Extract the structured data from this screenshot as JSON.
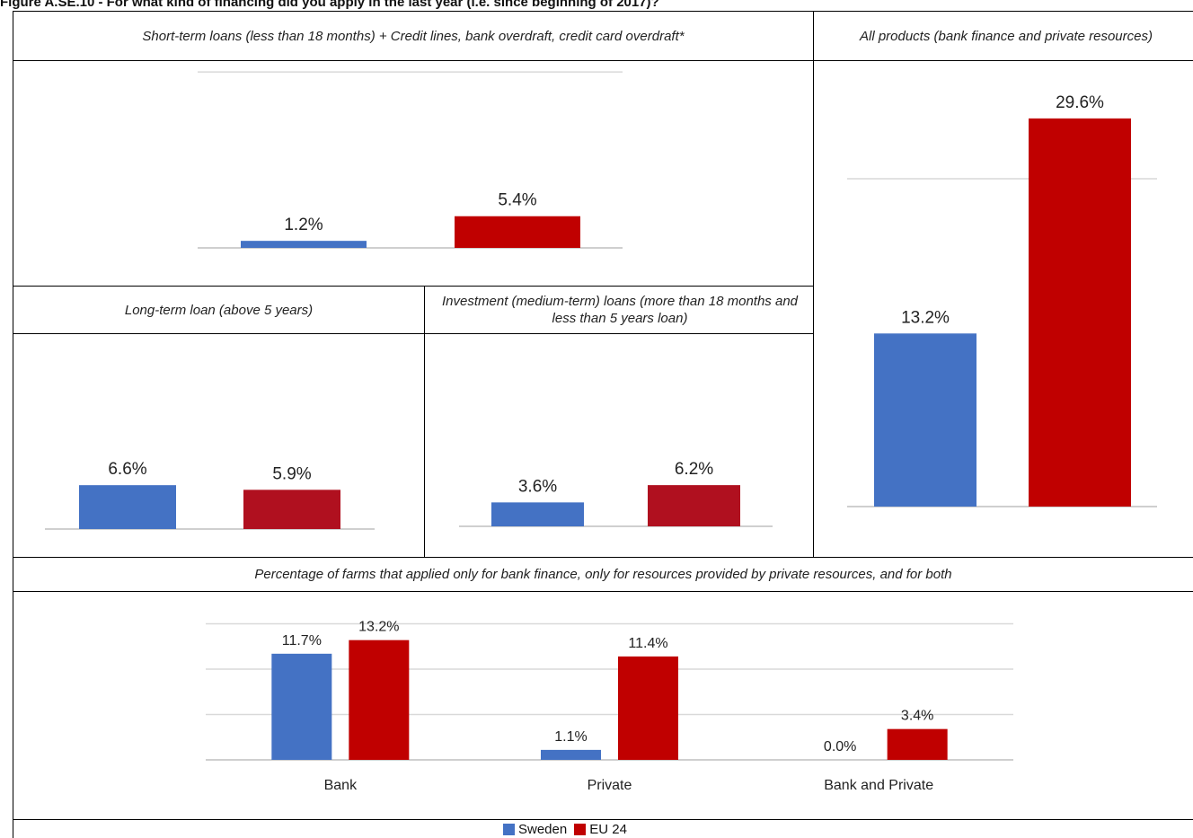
{
  "figure_title": "Figure A.SE.10 - For what kind of financing did you apply in the last year (i.e. since beginning of 2017)?",
  "colors": {
    "sweden": "#4472C4",
    "eu24": "#C00000",
    "eu24_dark": "#B0101F",
    "grid": "#D9D9D9",
    "axis": "#BFBFBF"
  },
  "legend": [
    {
      "name": "Sweden",
      "color": "#4472C4"
    },
    {
      "name": "EU 24",
      "color": "#C00000"
    }
  ],
  "chart_data": [
    {
      "type": "bar",
      "title": "Short-term loans (less than 18 months) + Credit lines, bank overdraft, credit card overdraft*",
      "categories": [
        ""
      ],
      "series": [
        {
          "name": "Sweden",
          "values": [
            1.2
          ],
          "labels": [
            "1.2%"
          ]
        },
        {
          "name": "EU 24",
          "values": [
            5.4
          ],
          "labels": [
            "5.4%"
          ]
        }
      ],
      "ylim": [
        0,
        30
      ],
      "grid": true
    },
    {
      "type": "bar",
      "title": "All products (bank finance and private resources)",
      "categories": [
        ""
      ],
      "series": [
        {
          "name": "Sweden",
          "values": [
            13.2
          ],
          "labels": [
            "13.2%"
          ]
        },
        {
          "name": "EU 24",
          "values": [
            29.6
          ],
          "labels": [
            "29.6%"
          ]
        }
      ],
      "ylim": [
        0,
        30
      ],
      "grid": true
    },
    {
      "type": "bar",
      "title": "Long-term loan (above 5 years)",
      "categories": [
        ""
      ],
      "series": [
        {
          "name": "Sweden",
          "values": [
            6.6
          ],
          "labels": [
            "6.6%"
          ]
        },
        {
          "name": "EU 24",
          "values": [
            5.9
          ],
          "labels": [
            "5.9%"
          ]
        }
      ],
      "ylim": [
        0,
        20
      ],
      "grid": true
    },
    {
      "type": "bar",
      "title": "Investment (medium-term) loans (more than 18 months and less than 5 years loan)",
      "categories": [
        ""
      ],
      "series": [
        {
          "name": "Sweden",
          "values": [
            3.6
          ],
          "labels": [
            "3.6%"
          ]
        },
        {
          "name": "EU 24",
          "values": [
            6.2
          ],
          "labels": [
            "6.2%"
          ]
        }
      ],
      "ylim": [
        0,
        20
      ],
      "grid": true
    },
    {
      "type": "bar",
      "title": "Percentage of farms that applied only for bank finance, only for resources provided by private resources, and for both",
      "categories": [
        "Bank",
        "Private",
        "Bank and Private"
      ],
      "series": [
        {
          "name": "Sweden",
          "values": [
            11.7,
            1.1,
            0.0
          ],
          "labels": [
            "11.7%",
            "1.1%",
            "0.0%"
          ]
        },
        {
          "name": "EU 24",
          "values": [
            13.2,
            11.4,
            3.4
          ],
          "labels": [
            "13.2%",
            "11.4%",
            "3.4%"
          ]
        }
      ],
      "ylim": [
        0,
        15
      ],
      "grid": true,
      "legend": "bottom"
    }
  ]
}
